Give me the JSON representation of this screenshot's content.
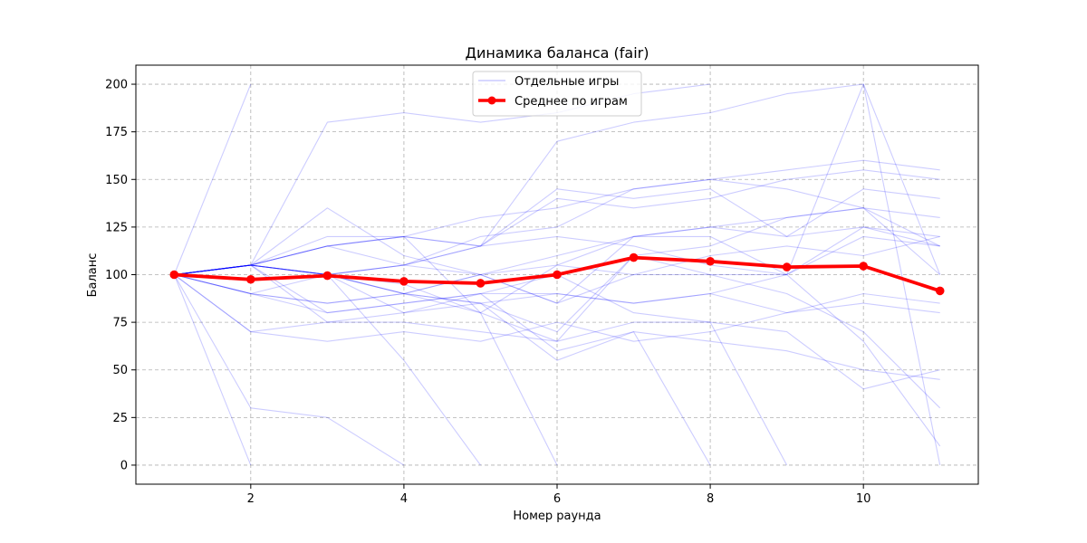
{
  "chart_data": {
    "type": "line",
    "title": "Динамика баланса (fair)",
    "xlabel": "Номер раунда",
    "ylabel": "Баланс",
    "xlim": [
      0.5,
      11.5
    ],
    "ylim": [
      -10,
      210
    ],
    "xticks": [
      2,
      4,
      6,
      8,
      10
    ],
    "yticks": [
      0,
      25,
      50,
      75,
      100,
      125,
      150,
      175,
      200
    ],
    "grid": true,
    "legend_position": "top-center",
    "legend": [
      {
        "label": "Отдельные игры",
        "color": "#0000ff"
      },
      {
        "label": "Среднее по играм",
        "color": "#ff0000"
      }
    ],
    "individual_color": "#0000ff",
    "mean_color": "#ff0000",
    "individual_series": [
      [
        100,
        200,
        null,
        null,
        null,
        null,
        null,
        null,
        null,
        null,
        null
      ],
      [
        100,
        105,
        180,
        185,
        180,
        185,
        195,
        200,
        null,
        null,
        null
      ],
      [
        100,
        105,
        115,
        120,
        115,
        170,
        180,
        185,
        195,
        200,
        100
      ],
      [
        100,
        105,
        115,
        120,
        130,
        135,
        145,
        150,
        155,
        160,
        155
      ],
      [
        100,
        105,
        100,
        105,
        115,
        140,
        135,
        140,
        150,
        155,
        150
      ],
      [
        100,
        105,
        100,
        105,
        115,
        145,
        140,
        145,
        120,
        145,
        140
      ],
      [
        100,
        105,
        135,
        110,
        100,
        110,
        120,
        125,
        130,
        135,
        130
      ],
      [
        100,
        105,
        115,
        120,
        115,
        120,
        115,
        105,
        100,
        125,
        115
      ],
      [
        100,
        105,
        100,
        90,
        85,
        90,
        85,
        90,
        100,
        200,
        0
      ],
      [
        100,
        90,
        100,
        105,
        100,
        105,
        120,
        125,
        120,
        125,
        120
      ],
      [
        100,
        90,
        85,
        90,
        100,
        85,
        120,
        120,
        100,
        120,
        115
      ],
      [
        100,
        105,
        100,
        90,
        80,
        105,
        100,
        110,
        115,
        110,
        120
      ],
      [
        100,
        105,
        115,
        105,
        120,
        125,
        145,
        150,
        145,
        135,
        100
      ],
      [
        100,
        90,
        80,
        85,
        90,
        90,
        85,
        90,
        80,
        85,
        80
      ],
      [
        100,
        70,
        65,
        70,
        65,
        75,
        65,
        70,
        80,
        90,
        85
      ],
      [
        100,
        105,
        75,
        75,
        70,
        65,
        110,
        115,
        130,
        135,
        115
      ],
      [
        100,
        70,
        75,
        80,
        90,
        60,
        70,
        65,
        60,
        50,
        45
      ],
      [
        100,
        30,
        25,
        0,
        null,
        null,
        null,
        null,
        null,
        null,
        null
      ],
      [
        100,
        0,
        null,
        null,
        null,
        null,
        null,
        null,
        null,
        null,
        null
      ],
      [
        100,
        105,
        100,
        55,
        0,
        null,
        null,
        null,
        null,
        null,
        null
      ],
      [
        100,
        105,
        120,
        120,
        80,
        0,
        null,
        null,
        null,
        null,
        null
      ],
      [
        100,
        105,
        100,
        80,
        85,
        55,
        70,
        0,
        null,
        null,
        null
      ],
      [
        100,
        105,
        80,
        85,
        90,
        100,
        80,
        75,
        0,
        null,
        null
      ],
      [
        100,
        90,
        85,
        90,
        100,
        85,
        100,
        100,
        90,
        70,
        30
      ],
      [
        100,
        105,
        100,
        90,
        85,
        70,
        110,
        100,
        100,
        65,
        10
      ],
      [
        100,
        105,
        100,
        95,
        80,
        65,
        75,
        75,
        70,
        40,
        50
      ]
    ],
    "mean_series": {
      "name": "Среднее по играм",
      "x": [
        1,
        2,
        3,
        4,
        5,
        6,
        7,
        8,
        9,
        10,
        11
      ],
      "values": [
        100,
        97.5,
        99.5,
        96.5,
        95.5,
        100,
        109,
        107,
        104,
        104.5,
        91.5
      ]
    }
  }
}
